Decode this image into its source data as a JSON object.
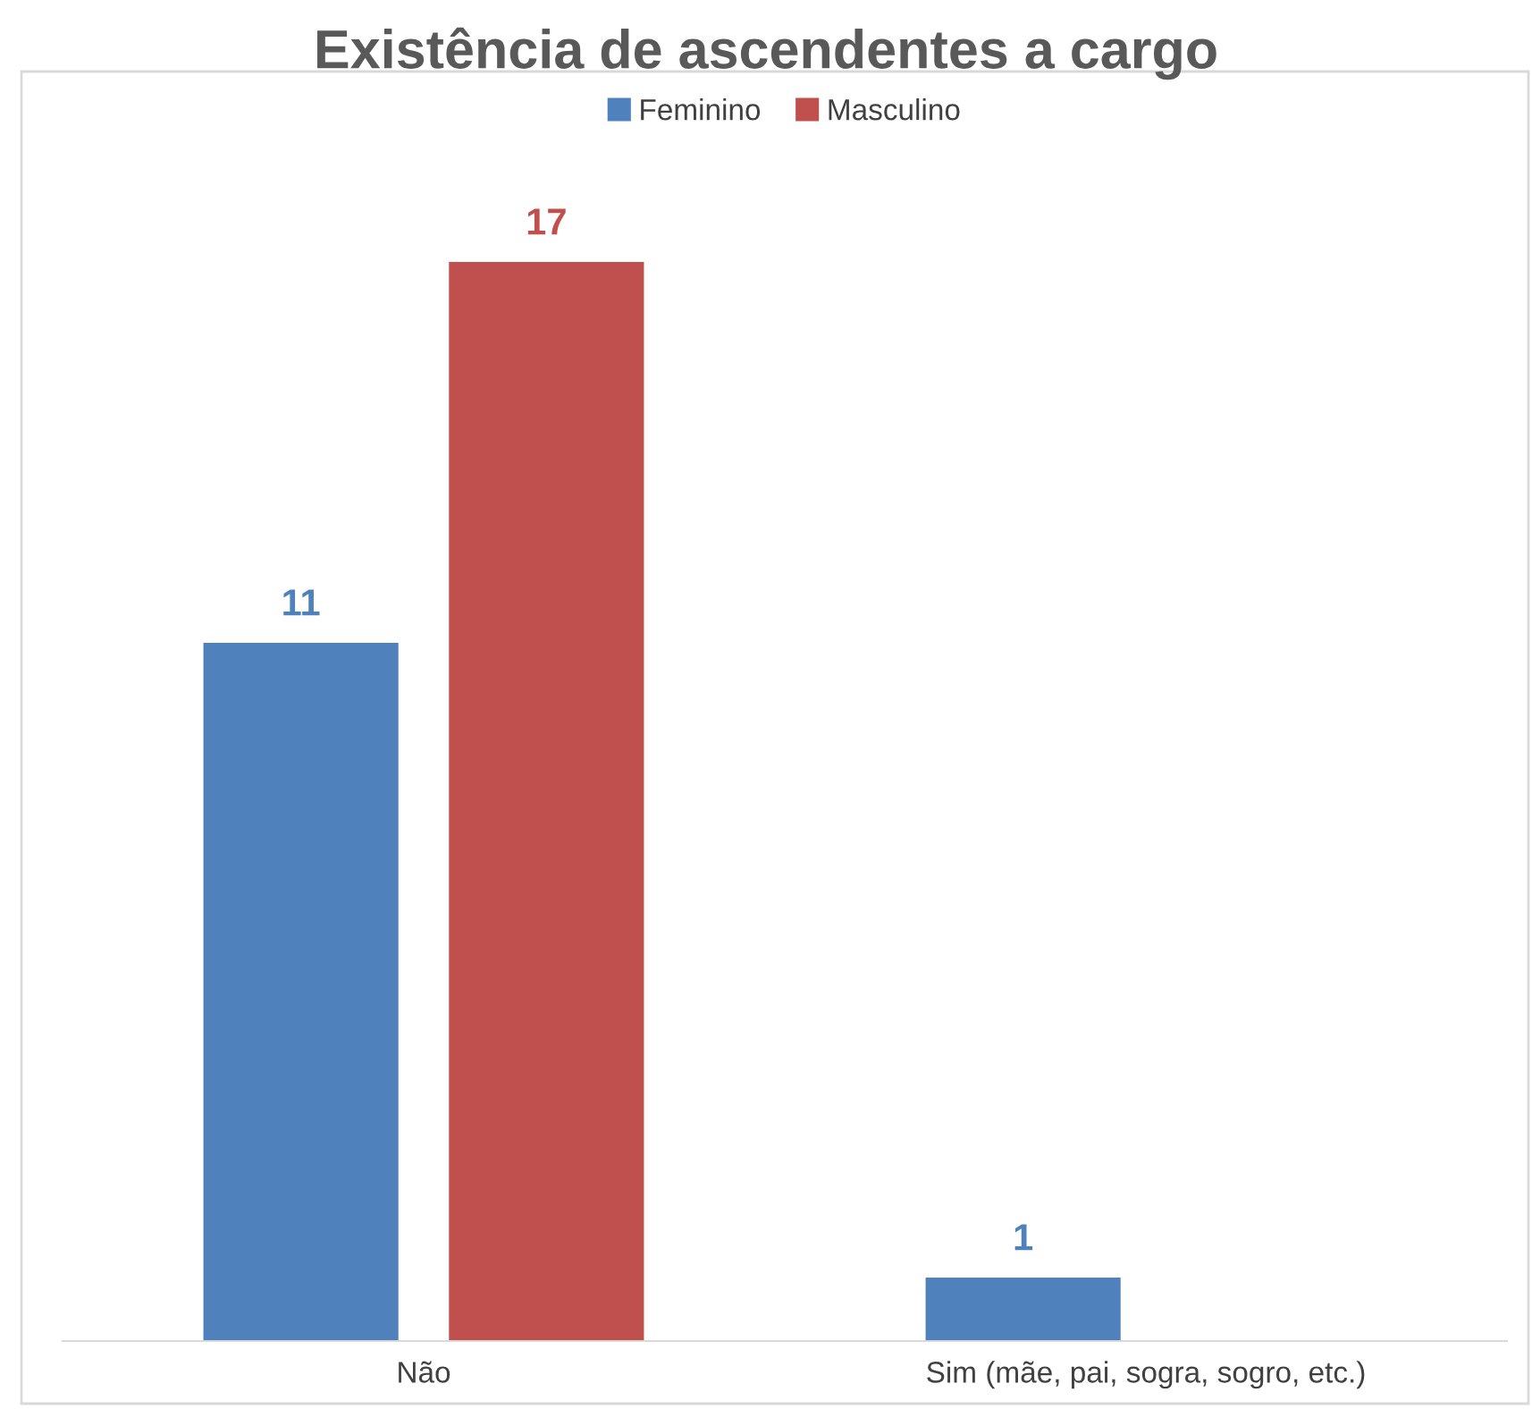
{
  "chart_data": {
    "type": "bar",
    "title": "Existência de ascendentes a cargo",
    "categories": [
      "Não",
      "Sim (mãe, pai, sogra, sogro, etc.)"
    ],
    "series": [
      {
        "name": "Feminino",
        "color": "#4f81bd",
        "values": [
          11,
          1
        ]
      },
      {
        "name": "Masculino",
        "color": "#c0504d",
        "values": [
          17,
          null
        ]
      }
    ],
    "ylim": [
      0,
      20
    ],
    "tick_labels": "x",
    "data_labels": true,
    "legend": "top",
    "grid": false
  }
}
